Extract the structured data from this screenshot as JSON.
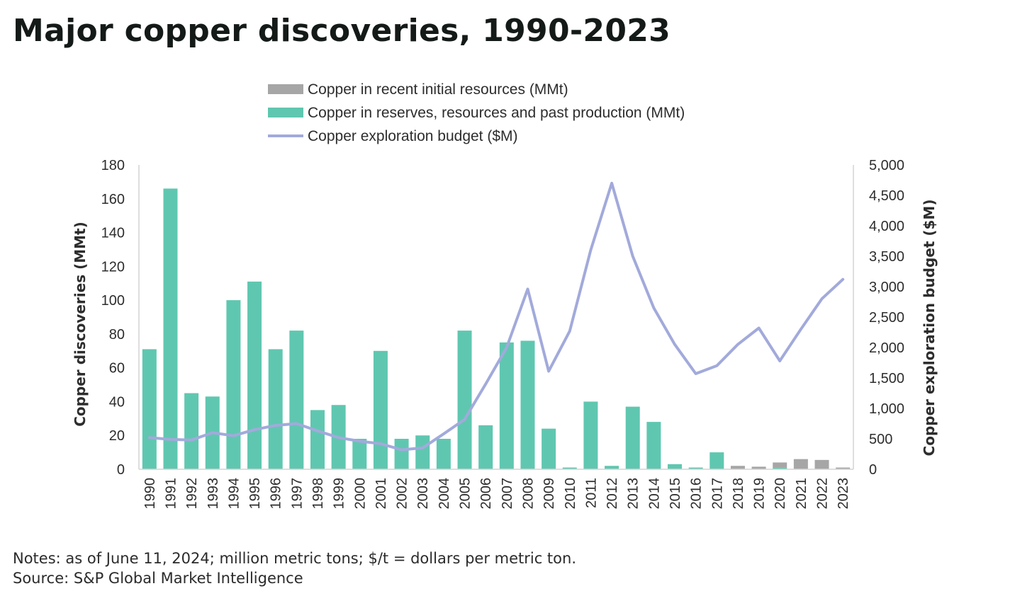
{
  "title": "Major copper discoveries, 1990-2023",
  "notes": "Notes: as of June 11, 2024; million metric tons; $/t = dollars per metric ton.",
  "source": "Source: S&P Global Market Intelligence",
  "chart_data": {
    "type": "bar",
    "categories": [
      "1990",
      "1991",
      "1992",
      "1993",
      "1994",
      "1995",
      "1996",
      "1997",
      "1998",
      "1999",
      "2000",
      "2001",
      "2002",
      "2003",
      "2004",
      "2005",
      "2006",
      "2007",
      "2008",
      "2009",
      "2010",
      "2011",
      "2012",
      "2013",
      "2014",
      "2015",
      "2016",
      "2017",
      "2018",
      "2019",
      "2020",
      "2021",
      "2022",
      "2023"
    ],
    "series": [
      {
        "name": "Copper in recent initial resources (MMt)",
        "kind": "bar",
        "axis": "left",
        "color": "#a6a6a6",
        "values": [
          0,
          0,
          0,
          0,
          0,
          0,
          0,
          0,
          0,
          0,
          0,
          0,
          0,
          0,
          0,
          0,
          0,
          0,
          0,
          0,
          0,
          0,
          0,
          0,
          0,
          0,
          0,
          0,
          2,
          1.5,
          3,
          6,
          5.5,
          1
        ]
      },
      {
        "name": "Copper in reserves, resources and past production (MMt)",
        "kind": "bar",
        "axis": "left",
        "color": "#5fc7b0",
        "values": [
          71,
          166,
          45,
          43,
          100,
          111,
          71,
          82,
          35,
          38,
          18,
          70,
          18,
          20,
          18,
          82,
          26,
          75,
          76,
          24,
          1,
          40,
          2,
          37,
          28,
          3,
          1,
          10,
          0,
          0,
          1,
          0,
          0,
          0
        ]
      },
      {
        "name": "Copper exploration budget ($M)",
        "kind": "line",
        "axis": "right",
        "color": "#a2aadb",
        "values": [
          520,
          490,
          480,
          600,
          550,
          650,
          720,
          750,
          630,
          520,
          460,
          420,
          320,
          350,
          580,
          820,
          1400,
          2000,
          2960,
          1610,
          2270,
          3600,
          4700,
          3500,
          2650,
          2050,
          1570,
          1700,
          2050,
          2320,
          1780,
          2300,
          2800,
          3120
        ]
      }
    ],
    "ylabel": "Copper discoveries (MMt)",
    "ylabel_right": "Copper exploration budget ($M)",
    "ylim": [
      0,
      180
    ],
    "ylim_right": [
      0,
      5000
    ],
    "yticks": [
      "0",
      "20",
      "40",
      "60",
      "80",
      "100",
      "120",
      "140",
      "160",
      "180"
    ],
    "yticks_right": [
      "0",
      "500",
      "1,000",
      "1,500",
      "2,000",
      "2,500",
      "3,000",
      "3,500",
      "4,000",
      "4,500",
      "5,000"
    ],
    "legend": "top-center",
    "grid": false
  }
}
